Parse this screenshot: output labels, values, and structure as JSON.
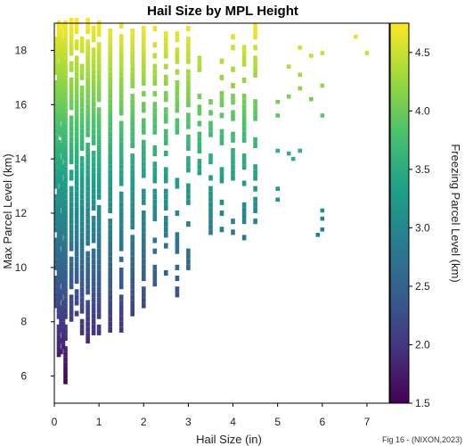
{
  "chart_data": {
    "type": "heatmap",
    "title": "Hail Size by MPL Height",
    "xlabel": "Hail Size (in)",
    "ylabel": "Max Parcel Level (km)",
    "colorbar_label": "Freezing Parcel Level (km)",
    "credit": "Fig 16 - (NIXON,2023)",
    "xlim": [
      0,
      7.5
    ],
    "ylim": [
      5,
      19
    ],
    "x_ticks": [
      0,
      1,
      2,
      3,
      4,
      5,
      6,
      7
    ],
    "y_ticks": [
      6,
      8,
      10,
      12,
      14,
      16,
      18
    ],
    "color_range": [
      1.5,
      4.75
    ],
    "colorbar_ticks": [
      1.5,
      2.0,
      2.5,
      3.0,
      3.5,
      4.0,
      4.5
    ],
    "colormap": "viridis",
    "grid": false,
    "columns": [
      {
        "x": 0.05,
        "y_range": [
          8.5,
          18.3
        ],
        "color_ref": "height"
      },
      {
        "x": 0.1,
        "y_range": [
          6.7,
          19.0
        ],
        "color_ref": "height"
      },
      {
        "x": 0.15,
        "y_range": [
          6.8,
          18.6
        ],
        "color_ref": "height"
      },
      {
        "x": 0.2,
        "y_range": [
          7.0,
          18.9
        ],
        "color_ref": "height"
      },
      {
        "x": 0.25,
        "y_range": [
          5.7,
          19.0
        ],
        "color_ref": "height"
      },
      {
        "x": 0.38,
        "y_range": [
          8.0,
          19.0
        ],
        "color_ref": "height"
      },
      {
        "x": 0.5,
        "y_range": [
          8.2,
          19.0
        ],
        "color_ref": "height"
      },
      {
        "x": 0.62,
        "y_range": [
          7.3,
          18.8
        ],
        "color_ref": "height"
      },
      {
        "x": 0.75,
        "y_range": [
          7.2,
          19.0
        ],
        "color_ref": "height"
      },
      {
        "x": 0.88,
        "y_range": [
          7.5,
          18.8
        ],
        "color_ref": "height"
      },
      {
        "x": 1.0,
        "y_range": [
          7.5,
          19.0
        ],
        "color_ref": "height"
      },
      {
        "x": 1.25,
        "y_range": [
          7.6,
          18.7
        ],
        "color_ref": "height"
      },
      {
        "x": 1.5,
        "y_range": [
          7.6,
          18.8
        ],
        "color_ref": "height"
      },
      {
        "x": 1.75,
        "y_range": [
          8.2,
          18.6
        ],
        "color_ref": "height"
      },
      {
        "x": 2.0,
        "y_range": [
          8.5,
          18.8
        ],
        "color_ref": "height"
      },
      {
        "x": 2.25,
        "y_range": [
          9.3,
          18.7
        ],
        "color_ref": "height"
      },
      {
        "x": 2.5,
        "y_range": [
          9.5,
          18.5
        ],
        "color_ref": "height"
      },
      {
        "x": 2.75,
        "y_range": [
          8.9,
          18.6
        ],
        "color_ref": "height"
      },
      {
        "x": 3.0,
        "y_range": [
          9.9,
          18.7
        ],
        "color_ref": "height"
      },
      {
        "x": 3.25,
        "y_range": [
          13.4,
          17.6
        ],
        "color_ref": "height"
      },
      {
        "x": 3.5,
        "y_range": [
          11.2,
          16.0
        ],
        "color_ref": "height"
      },
      {
        "x": 3.75,
        "y_range": [
          11.3,
          17.5
        ],
        "color_ref": "height"
      },
      {
        "x": 4.0,
        "y_range": [
          11.2,
          18.4
        ],
        "color_ref": "height"
      },
      {
        "x": 4.25,
        "y_range": [
          10.8,
          18.5
        ],
        "color_ref": "height"
      },
      {
        "x": 4.5,
        "y_range": [
          11.6,
          18.8
        ],
        "color_ref": "height"
      }
    ],
    "points": [
      {
        "x": 5.0,
        "y": 16.1
      },
      {
        "x": 5.0,
        "y": 15.6
      },
      {
        "x": 5.0,
        "y": 14.3
      },
      {
        "x": 5.0,
        "y": 12.9
      },
      {
        "x": 5.0,
        "y": 12.5
      },
      {
        "x": 5.25,
        "y": 16.3
      },
      {
        "x": 5.25,
        "y": 14.2
      },
      {
        "x": 5.25,
        "y": 17.4
      },
      {
        "x": 5.35,
        "y": 14.0
      },
      {
        "x": 5.5,
        "y": 18.1
      },
      {
        "x": 5.5,
        "y": 17.1
      },
      {
        "x": 5.5,
        "y": 16.6
      },
      {
        "x": 5.5,
        "y": 14.3
      },
      {
        "x": 5.75,
        "y": 17.8
      },
      {
        "x": 5.75,
        "y": 16.2
      },
      {
        "x": 6.0,
        "y": 17.9
      },
      {
        "x": 6.0,
        "y": 16.7
      },
      {
        "x": 6.0,
        "y": 15.6
      },
      {
        "x": 6.0,
        "y": 12.1
      },
      {
        "x": 6.0,
        "y": 11.8
      },
      {
        "x": 6.0,
        "y": 11.4
      },
      {
        "x": 5.9,
        "y": 11.2
      },
      {
        "x": 6.75,
        "y": 18.5
      },
      {
        "x": 7.0,
        "y": 17.9
      }
    ]
  }
}
